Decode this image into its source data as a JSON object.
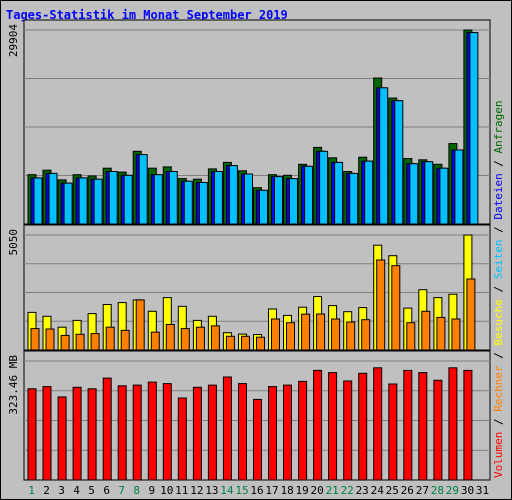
{
  "title": "Tages-Statistik im Monat September 2019",
  "colors": {
    "frame_bg": "#c0c0c0",
    "title": "#0000ff",
    "anfragen": "#006600",
    "dateien": "#0000ff",
    "seiten": "#00c0ff",
    "besuche": "#ffff00",
    "rechner": "#ff8000",
    "volumen": "#ff0000",
    "weekday_label": "#000000",
    "weekend_label": "#008040"
  },
  "chart_data": [
    {
      "type": "bar",
      "panel": "top",
      "ymax_label": "29904",
      "ymax": 29904,
      "ylim": [
        0,
        29904
      ],
      "grid": true,
      "categories": [
        "1",
        "2",
        "3",
        "4",
        "5",
        "6",
        "7",
        "8",
        "9",
        "10",
        "11",
        "12",
        "13",
        "14",
        "15",
        "16",
        "17",
        "18",
        "19",
        "20",
        "21",
        "22",
        "23",
        "24",
        "25",
        "26",
        "27",
        "28",
        "29",
        "30",
        "31"
      ],
      "series": [
        {
          "name": "Anfragen",
          "color": "#006600",
          "values": [
            7600,
            8300,
            6800,
            7600,
            7400,
            8600,
            8000,
            11200,
            8600,
            8800,
            7000,
            6900,
            8500,
            9500,
            8200,
            5600,
            7600,
            7500,
            9200,
            11800,
            10200,
            8100,
            10300,
            22500,
            19400,
            10100,
            9900,
            9200,
            12400,
            29904,
            0
          ]
        },
        {
          "name": "Dateien",
          "color": "#0000ff",
          "values": [
            7100,
            7800,
            6300,
            7100,
            6900,
            8100,
            7500,
            10700,
            7600,
            8100,
            6600,
            6400,
            8100,
            9000,
            7700,
            5200,
            7300,
            7000,
            8900,
            11200,
            9500,
            7800,
            9700,
            21000,
            19000,
            9300,
            9600,
            8600,
            11400,
            29500,
            0
          ]
        },
        {
          "name": "Seiten",
          "color": "#00c0ff",
          "values": [
            7100,
            7800,
            6300,
            7100,
            6900,
            8100,
            7500,
            10700,
            7600,
            8100,
            6600,
            6400,
            8100,
            9000,
            7700,
            5200,
            7300,
            7000,
            8900,
            11200,
            9500,
            7800,
            9700,
            21000,
            19000,
            9300,
            9600,
            8600,
            11400,
            29500,
            0
          ]
        }
      ]
    },
    {
      "type": "bar",
      "panel": "middle",
      "ymax_label": "5050",
      "ymax": 5050,
      "ylim": [
        0,
        5050
      ],
      "grid": true,
      "categories": [
        "1",
        "2",
        "3",
        "4",
        "5",
        "6",
        "7",
        "8",
        "9",
        "10",
        "11",
        "12",
        "13",
        "14",
        "15",
        "16",
        "17",
        "18",
        "19",
        "20",
        "21",
        "22",
        "23",
        "24",
        "25",
        "26",
        "27",
        "28",
        "29",
        "30",
        "31"
      ],
      "series": [
        {
          "name": "Besuche",
          "color": "#ffff00",
          "values": [
            1650,
            1480,
            1000,
            1300,
            1600,
            2000,
            2080,
            2200,
            1700,
            2300,
            1920,
            1300,
            1480,
            760,
            700,
            680,
            1800,
            1520,
            1880,
            2350,
            1950,
            1680,
            1860,
            4600,
            4140,
            1840,
            2650,
            2300,
            2450,
            5050,
            0
          ]
        },
        {
          "name": "Rechner",
          "color": "#ff8000",
          "values": [
            940,
            920,
            640,
            690,
            720,
            1000,
            860,
            2200,
            780,
            1120,
            940,
            1000,
            1060,
            600,
            600,
            560,
            1360,
            1200,
            1570,
            1580,
            1360,
            1230,
            1330,
            3950,
            3700,
            1200,
            1700,
            1430,
            1360,
            3120,
            0
          ]
        }
      ]
    },
    {
      "type": "bar",
      "panel": "bottom",
      "ymax_label": "323.46 MB",
      "ymax": 323.46,
      "ylim": [
        0,
        323.46
      ],
      "grid": true,
      "categories": [
        "1",
        "2",
        "3",
        "4",
        "5",
        "6",
        "7",
        "8",
        "9",
        "10",
        "11",
        "12",
        "13",
        "14",
        "15",
        "16",
        "17",
        "18",
        "19",
        "20",
        "21",
        "22",
        "23",
        "24",
        "25",
        "26",
        "27",
        "28",
        "29",
        "30",
        "31"
      ],
      "series": [
        {
          "name": "Volumen",
          "color": "#ff0000",
          "values": [
            248,
            254,
            226,
            252,
            248,
            277,
            256,
            258,
            266,
            262,
            223,
            252,
            258,
            280,
            262,
            219,
            254,
            258,
            268,
            298,
            292,
            269,
            290,
            305,
            261,
            298,
            292,
            271,
            305,
            298,
            0
          ]
        }
      ]
    }
  ],
  "x_labels": {
    "weekend_days": [
      1,
      7,
      8,
      14,
      15,
      21,
      22,
      28,
      29
    ]
  },
  "right_legend": [
    {
      "text": "Volumen",
      "color": "#ff0000"
    },
    {
      "text": " / ",
      "color": "#000000"
    },
    {
      "text": "Rechner",
      "color": "#ff8000"
    },
    {
      "text": " / ",
      "color": "#000000"
    },
    {
      "text": "Besuche",
      "color": "#ffff00"
    },
    {
      "text": " / ",
      "color": "#000000"
    },
    {
      "text": "Seiten",
      "color": "#00c0ff"
    },
    {
      "text": " / ",
      "color": "#000000"
    },
    {
      "text": "Dateien",
      "color": "#0000ff"
    },
    {
      "text": " / ",
      "color": "#000000"
    },
    {
      "text": "Anfragen",
      "color": "#006600"
    }
  ]
}
